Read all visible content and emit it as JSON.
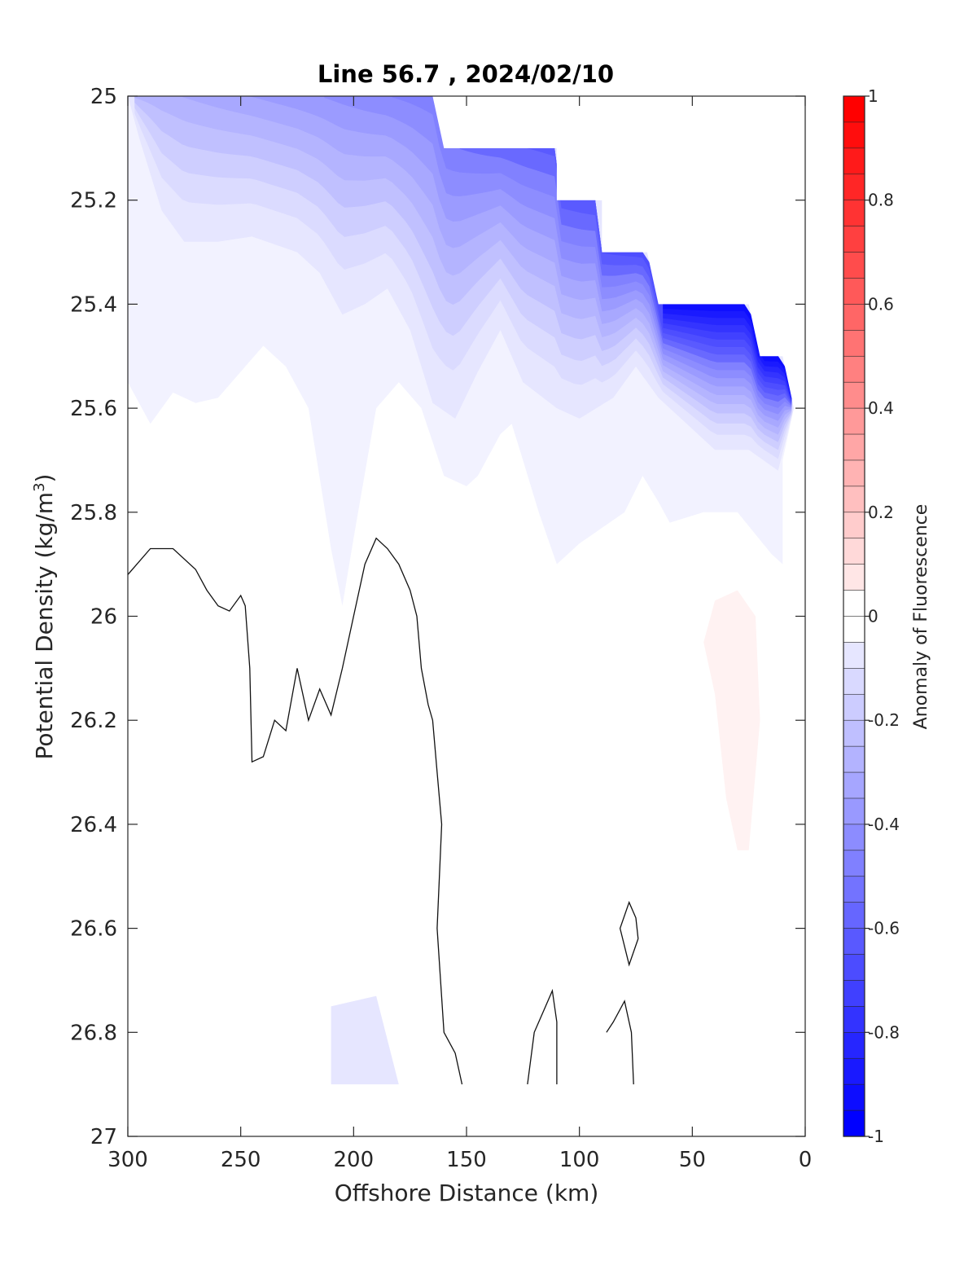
{
  "chart_data": {
    "type": "heatmap",
    "title": "Line 56.7 , 2024/02/10",
    "xlabel": "Offshore Distance (km)",
    "ylabel_main": "Potential Density (kg/m",
    "ylabel_sup": "3",
    "ylabel_close": ")",
    "xlim": [
      300,
      0
    ],
    "ylim": [
      25,
      27
    ],
    "x_ticks": [
      300,
      250,
      200,
      150,
      100,
      50,
      0
    ],
    "x_tick_labels": [
      "300",
      "250",
      "200",
      "150",
      "100",
      "50",
      "0"
    ],
    "y_ticks": [
      25,
      25.2,
      25.4,
      25.6,
      25.8,
      26,
      26.2,
      26.4,
      26.6,
      26.8,
      27
    ],
    "y_tick_labels": [
      "25",
      "25.2",
      "25.4",
      "25.6",
      "25.8",
      "26",
      "26.2",
      "26.4",
      "26.6",
      "26.8",
      "27"
    ],
    "colorbar": {
      "label": "Anomaly of Fluorescence",
      "range": [
        -1,
        1
      ],
      "step": 0.05,
      "ticks": [
        1,
        0.8,
        0.6,
        0.4,
        0.2,
        0,
        -0.2,
        -0.4,
        -0.6,
        -0.8,
        -1
      ],
      "tick_labels": [
        "1",
        "0.8",
        "0.6",
        "0.4",
        "0.2",
        "0",
        "-0.2",
        "-0.4",
        "-0.6",
        "-0.8",
        "-1"
      ],
      "colormap": "blue-white-red",
      "low_color": "#0000ff",
      "mid_color": "#ffffff",
      "high_color": "#ff0000"
    },
    "data_extent_upper_boundary": [
      [
        300,
        25.0
      ],
      [
        165,
        25.0
      ],
      [
        160,
        25.1
      ],
      [
        110,
        25.1
      ],
      [
        110,
        25.2
      ],
      [
        90,
        25.2
      ],
      [
        90,
        25.3
      ],
      [
        70,
        25.3
      ],
      [
        65,
        25.4
      ],
      [
        25,
        25.4
      ],
      [
        20,
        25.5
      ],
      [
        10,
        25.5
      ],
      [
        5,
        25.6
      ]
    ],
    "filled_regions": [
      {
        "level": -0.05,
        "polygon": [
          [
            300,
            25.0
          ],
          [
            165,
            25.0
          ],
          [
            160,
            25.1
          ],
          [
            110,
            25.1
          ],
          [
            110,
            25.2
          ],
          [
            90,
            25.2
          ],
          [
            90,
            25.3
          ],
          [
            70,
            25.3
          ],
          [
            65,
            25.4
          ],
          [
            25,
            25.4
          ],
          [
            20,
            25.5
          ],
          [
            10,
            25.5
          ],
          [
            5,
            25.6
          ],
          [
            10,
            25.7
          ],
          [
            10,
            25.9
          ],
          [
            15,
            25.88
          ],
          [
            30,
            25.8
          ],
          [
            45,
            25.8
          ],
          [
            60,
            25.82
          ],
          [
            65,
            25.78
          ],
          [
            72,
            25.73
          ],
          [
            80,
            25.8
          ],
          [
            90,
            25.83
          ],
          [
            100,
            25.86
          ],
          [
            110,
            25.9
          ],
          [
            118,
            25.8
          ],
          [
            125,
            25.7
          ],
          [
            130,
            25.63
          ],
          [
            135,
            25.65
          ],
          [
            145,
            25.73
          ],
          [
            150,
            25.75
          ],
          [
            160,
            25.73
          ],
          [
            170,
            25.6
          ],
          [
            180,
            25.55
          ],
          [
            190,
            25.6
          ],
          [
            200,
            25.85
          ],
          [
            205,
            25.98
          ],
          [
            210,
            25.87
          ],
          [
            220,
            25.6
          ],
          [
            230,
            25.52
          ],
          [
            240,
            25.48
          ],
          [
            260,
            25.58
          ],
          [
            270,
            25.59
          ],
          [
            280,
            25.57
          ],
          [
            290,
            25.63
          ],
          [
            300,
            25.55
          ],
          [
            300,
            26.9
          ],
          [
            300,
            25.0
          ]
        ]
      },
      {
        "level": -0.1,
        "polygon": [
          [
            300,
            25.0
          ],
          [
            165,
            25.0
          ],
          [
            160,
            25.1
          ],
          [
            110,
            25.1
          ],
          [
            110,
            25.2
          ],
          [
            90,
            25.2
          ],
          [
            90,
            25.3
          ],
          [
            70,
            25.3
          ],
          [
            65,
            25.4
          ],
          [
            25,
            25.4
          ],
          [
            20,
            25.5
          ],
          [
            10,
            25.5
          ],
          [
            5,
            25.6
          ],
          [
            12,
            25.72
          ],
          [
            25,
            25.68
          ],
          [
            40,
            25.68
          ],
          [
            55,
            25.62
          ],
          [
            65,
            25.58
          ],
          [
            75,
            25.52
          ],
          [
            85,
            25.58
          ],
          [
            100,
            25.62
          ],
          [
            110,
            25.6
          ],
          [
            125,
            25.55
          ],
          [
            135,
            25.45
          ],
          [
            145,
            25.53
          ],
          [
            155,
            25.62
          ],
          [
            165,
            25.59
          ],
          [
            175,
            25.45
          ],
          [
            185,
            25.37
          ],
          [
            195,
            25.4
          ],
          [
            205,
            25.42
          ],
          [
            215,
            25.34
          ],
          [
            225,
            25.3
          ],
          [
            245,
            25.27
          ],
          [
            260,
            25.28
          ],
          [
            275,
            25.28
          ],
          [
            285,
            25.22
          ],
          [
            295,
            25.08
          ],
          [
            300,
            25.0
          ]
        ]
      },
      {
        "level": -0.1,
        "polygon": [
          [
            230,
            26.9
          ],
          [
            210,
            26.9
          ],
          [
            210,
            26.75
          ],
          [
            190,
            26.73
          ],
          [
            180,
            26.9
          ],
          [
            230,
            26.9
          ]
        ]
      }
    ],
    "contour_zero": [
      [
        [
          152,
          26.9
        ],
        [
          155,
          26.84
        ],
        [
          160,
          26.8
        ],
        [
          163,
          26.6
        ],
        [
          161,
          26.4
        ],
        [
          163,
          26.3
        ],
        [
          165,
          26.2
        ],
        [
          167,
          26.17
        ],
        [
          170,
          26.1
        ],
        [
          172,
          26.0
        ],
        [
          175,
          25.95
        ],
        [
          180,
          25.9
        ],
        [
          185,
          25.87
        ],
        [
          190,
          25.85
        ],
        [
          195,
          25.9
        ],
        [
          200,
          26.0
        ],
        [
          205,
          26.1
        ],
        [
          210,
          26.19
        ],
        [
          215,
          26.14
        ],
        [
          220,
          26.2
        ],
        [
          225,
          26.1
        ],
        [
          230,
          26.22
        ],
        [
          235,
          26.2
        ],
        [
          240,
          26.27
        ],
        [
          245,
          26.28
        ],
        [
          246,
          26.1
        ],
        [
          248,
          25.98
        ],
        [
          250,
          25.96
        ],
        [
          255,
          25.99
        ],
        [
          260,
          25.98
        ],
        [
          265,
          25.95
        ],
        [
          270,
          25.91
        ],
        [
          280,
          25.87
        ],
        [
          290,
          25.87
        ],
        [
          300,
          25.92
        ],
        [
          307,
          25.97
        ]
      ],
      [
        [
          74,
          26.62
        ],
        [
          75,
          26.58
        ],
        [
          78,
          26.55
        ],
        [
          82,
          26.6
        ],
        [
          78,
          26.67
        ],
        [
          74,
          26.62
        ]
      ],
      [
        [
          110,
          26.9
        ],
        [
          110,
          26.78
        ],
        [
          112,
          26.72
        ],
        [
          115,
          26.75
        ],
        [
          120,
          26.8
        ],
        [
          123,
          26.9
        ]
      ],
      [
        [
          76,
          26.9
        ],
        [
          77,
          26.8
        ],
        [
          80,
          26.74
        ],
        [
          85,
          26.78
        ],
        [
          88,
          26.8
        ]
      ]
    ]
  }
}
